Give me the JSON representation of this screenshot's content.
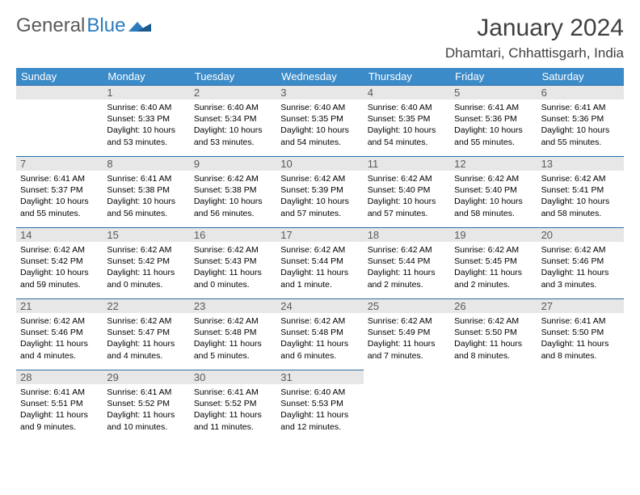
{
  "brand": {
    "part1": "General",
    "part2": "Blue"
  },
  "title": "January 2024",
  "location": "Dhamtari, Chhattisgarh, India",
  "colors": {
    "header_bg": "#3b8bc9",
    "header_text": "#ffffff",
    "daynum_bg": "#e7e7e7",
    "daynum_text": "#5a5a5a",
    "rule": "#2e6da4",
    "body_text": "#000000",
    "title_text": "#404040",
    "brand_gray": "#5a5a5a",
    "brand_blue": "#2b7bbf",
    "page_bg": "#ffffff"
  },
  "typography": {
    "title_fontsize": 30,
    "location_fontsize": 17,
    "weekday_fontsize": 13,
    "daynum_fontsize": 13,
    "body_fontsize": 10.5,
    "logo_fontsize": 24
  },
  "weekdays": [
    "Sunday",
    "Monday",
    "Tuesday",
    "Wednesday",
    "Thursday",
    "Friday",
    "Saturday"
  ],
  "first_weekday_index": 1,
  "days": [
    {
      "n": 1,
      "sunrise": "6:40 AM",
      "sunset": "5:33 PM",
      "daylight": "10 hours and 53 minutes."
    },
    {
      "n": 2,
      "sunrise": "6:40 AM",
      "sunset": "5:34 PM",
      "daylight": "10 hours and 53 minutes."
    },
    {
      "n": 3,
      "sunrise": "6:40 AM",
      "sunset": "5:35 PM",
      "daylight": "10 hours and 54 minutes."
    },
    {
      "n": 4,
      "sunrise": "6:40 AM",
      "sunset": "5:35 PM",
      "daylight": "10 hours and 54 minutes."
    },
    {
      "n": 5,
      "sunrise": "6:41 AM",
      "sunset": "5:36 PM",
      "daylight": "10 hours and 55 minutes."
    },
    {
      "n": 6,
      "sunrise": "6:41 AM",
      "sunset": "5:36 PM",
      "daylight": "10 hours and 55 minutes."
    },
    {
      "n": 7,
      "sunrise": "6:41 AM",
      "sunset": "5:37 PM",
      "daylight": "10 hours and 55 minutes."
    },
    {
      "n": 8,
      "sunrise": "6:41 AM",
      "sunset": "5:38 PM",
      "daylight": "10 hours and 56 minutes."
    },
    {
      "n": 9,
      "sunrise": "6:42 AM",
      "sunset": "5:38 PM",
      "daylight": "10 hours and 56 minutes."
    },
    {
      "n": 10,
      "sunrise": "6:42 AM",
      "sunset": "5:39 PM",
      "daylight": "10 hours and 57 minutes."
    },
    {
      "n": 11,
      "sunrise": "6:42 AM",
      "sunset": "5:40 PM",
      "daylight": "10 hours and 57 minutes."
    },
    {
      "n": 12,
      "sunrise": "6:42 AM",
      "sunset": "5:40 PM",
      "daylight": "10 hours and 58 minutes."
    },
    {
      "n": 13,
      "sunrise": "6:42 AM",
      "sunset": "5:41 PM",
      "daylight": "10 hours and 58 minutes."
    },
    {
      "n": 14,
      "sunrise": "6:42 AM",
      "sunset": "5:42 PM",
      "daylight": "10 hours and 59 minutes."
    },
    {
      "n": 15,
      "sunrise": "6:42 AM",
      "sunset": "5:42 PM",
      "daylight": "11 hours and 0 minutes."
    },
    {
      "n": 16,
      "sunrise": "6:42 AM",
      "sunset": "5:43 PM",
      "daylight": "11 hours and 0 minutes."
    },
    {
      "n": 17,
      "sunrise": "6:42 AM",
      "sunset": "5:44 PM",
      "daylight": "11 hours and 1 minute."
    },
    {
      "n": 18,
      "sunrise": "6:42 AM",
      "sunset": "5:44 PM",
      "daylight": "11 hours and 2 minutes."
    },
    {
      "n": 19,
      "sunrise": "6:42 AM",
      "sunset": "5:45 PM",
      "daylight": "11 hours and 2 minutes."
    },
    {
      "n": 20,
      "sunrise": "6:42 AM",
      "sunset": "5:46 PM",
      "daylight": "11 hours and 3 minutes."
    },
    {
      "n": 21,
      "sunrise": "6:42 AM",
      "sunset": "5:46 PM",
      "daylight": "11 hours and 4 minutes."
    },
    {
      "n": 22,
      "sunrise": "6:42 AM",
      "sunset": "5:47 PM",
      "daylight": "11 hours and 4 minutes."
    },
    {
      "n": 23,
      "sunrise": "6:42 AM",
      "sunset": "5:48 PM",
      "daylight": "11 hours and 5 minutes."
    },
    {
      "n": 24,
      "sunrise": "6:42 AM",
      "sunset": "5:48 PM",
      "daylight": "11 hours and 6 minutes."
    },
    {
      "n": 25,
      "sunrise": "6:42 AM",
      "sunset": "5:49 PM",
      "daylight": "11 hours and 7 minutes."
    },
    {
      "n": 26,
      "sunrise": "6:42 AM",
      "sunset": "5:50 PM",
      "daylight": "11 hours and 8 minutes."
    },
    {
      "n": 27,
      "sunrise": "6:41 AM",
      "sunset": "5:50 PM",
      "daylight": "11 hours and 8 minutes."
    },
    {
      "n": 28,
      "sunrise": "6:41 AM",
      "sunset": "5:51 PM",
      "daylight": "11 hours and 9 minutes."
    },
    {
      "n": 29,
      "sunrise": "6:41 AM",
      "sunset": "5:52 PM",
      "daylight": "11 hours and 10 minutes."
    },
    {
      "n": 30,
      "sunrise": "6:41 AM",
      "sunset": "5:52 PM",
      "daylight": "11 hours and 11 minutes."
    },
    {
      "n": 31,
      "sunrise": "6:40 AM",
      "sunset": "5:53 PM",
      "daylight": "11 hours and 12 minutes."
    }
  ],
  "labels": {
    "sunrise": "Sunrise:",
    "sunset": "Sunset:",
    "daylight": "Daylight:"
  }
}
